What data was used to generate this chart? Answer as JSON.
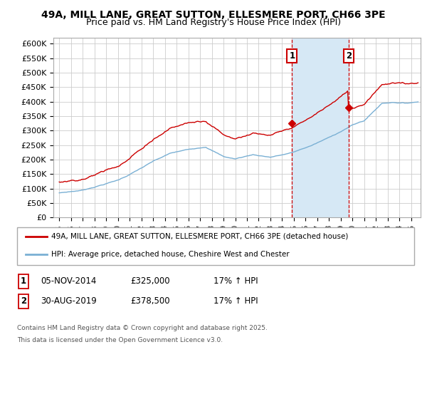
{
  "title_line1": "49A, MILL LANE, GREAT SUTTON, ELLESMERE PORT, CH66 3PE",
  "title_line2": "Price paid vs. HM Land Registry's House Price Index (HPI)",
  "ylim": [
    0,
    620000
  ],
  "yticks": [
    0,
    50000,
    100000,
    150000,
    200000,
    250000,
    300000,
    350000,
    400000,
    450000,
    500000,
    550000,
    600000
  ],
  "ytick_labels": [
    "£0",
    "£50K",
    "£100K",
    "£150K",
    "£200K",
    "£250K",
    "£300K",
    "£350K",
    "£400K",
    "£450K",
    "£500K",
    "£550K",
    "£600K"
  ],
  "sale1_date_str": "05-NOV-2014",
  "sale1_price": 325000,
  "sale1_x": 2014.84,
  "sale1_pct": "17%",
  "sale2_date_str": "30-AUG-2019",
  "sale2_price": 378500,
  "sale2_x": 2019.66,
  "sale2_pct": "17%",
  "legend_label1": "49A, MILL LANE, GREAT SUTTON, ELLESMERE PORT, CH66 3PE (detached house)",
  "legend_label2": "HPI: Average price, detached house, Cheshire West and Chester",
  "footer_line1": "Contains HM Land Registry data © Crown copyright and database right 2025.",
  "footer_line2": "This data is licensed under the Open Government Licence v3.0.",
  "line1_color": "#cc0000",
  "line2_color": "#7ab0d4",
  "shade_color": "#d6e8f5",
  "background_color": "#ffffff",
  "grid_color": "#cccccc",
  "xlim_left": 1994.5,
  "xlim_right": 2025.8
}
